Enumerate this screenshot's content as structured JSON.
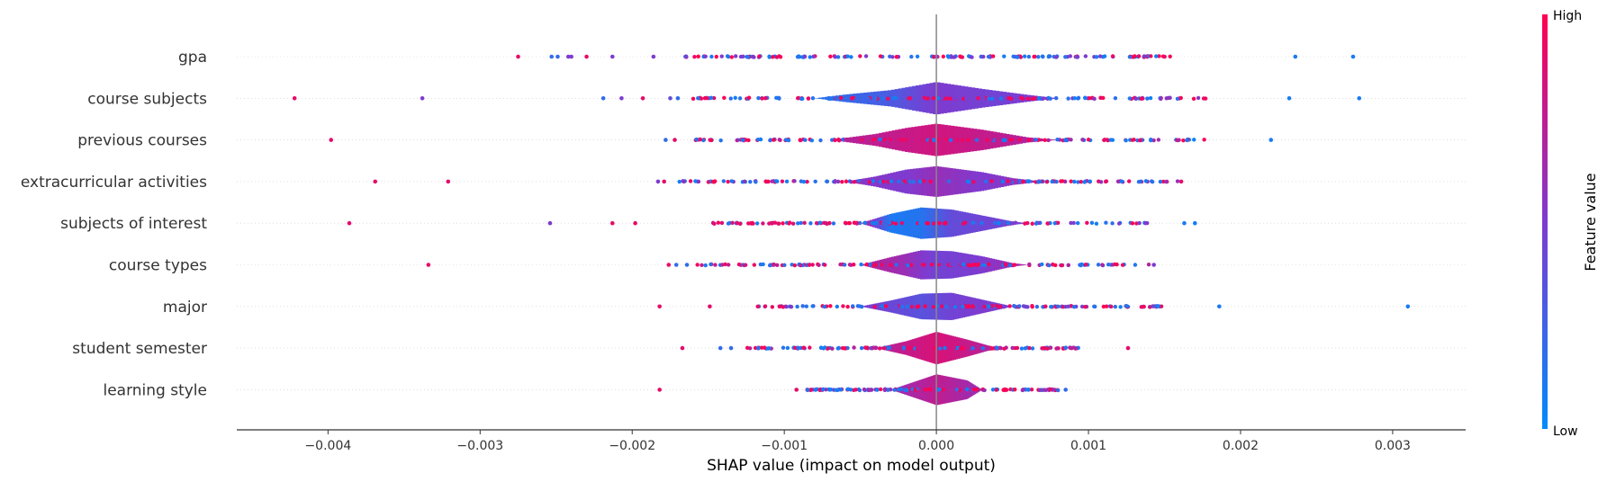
{
  "chart_data": {
    "type": "scatter",
    "subtype": "shap-violin-summary",
    "title": "",
    "xlabel": "SHAP value (impact on model output)",
    "ylabel": "",
    "xlim": [
      -0.0046,
      0.00348
    ],
    "xticks": [
      -0.004,
      -0.003,
      -0.002,
      -0.001,
      0.0,
      0.001,
      0.002,
      0.003
    ],
    "xtick_labels": [
      "−0.004",
      "−0.003",
      "−0.002",
      "−0.001",
      "0.000",
      "0.001",
      "0.002",
      "0.003"
    ],
    "grid": false,
    "zero_line": true,
    "colorbar": {
      "title": "Feature value",
      "high_label": "High",
      "low_label": "Low",
      "low_color": "#008bfb",
      "mid_color": "#7e3bd0",
      "high_color": "#ff0051"
    },
    "features": [
      {
        "name": "gpa",
        "outliers": [
          [
            -0.00275,
            0.9
          ],
          [
            -0.00253,
            0.2
          ],
          [
            -0.00249,
            0.2
          ],
          [
            -0.00242,
            0.5
          ],
          [
            -0.0024,
            0.5
          ],
          [
            -0.0023,
            0.9
          ],
          [
            -0.00213,
            0.5
          ],
          [
            -0.00186,
            0.5
          ],
          [
            -0.00165,
            0.4
          ],
          [
            0.00236,
            0.1
          ],
          [
            0.00274,
            0.1
          ]
        ],
        "band": [
          -0.0017,
          0.0016
        ],
        "violin": [],
        "violin_colors": []
      },
      {
        "name": "course subjects",
        "outliers": [
          [
            -0.00422,
            0.9
          ],
          [
            -0.00338,
            0.5
          ],
          [
            -0.00219,
            0.2
          ],
          [
            -0.00207,
            0.5
          ],
          [
            -0.00193,
            0.9
          ],
          [
            -0.00175,
            0.4
          ],
          [
            -0.0017,
            0.2
          ],
          [
            0.00232,
            0.1
          ],
          [
            0.00278,
            0.1
          ]
        ],
        "band": [
          -0.0016,
          0.0018
        ],
        "violin": [
          [
            -0.0008,
            0.0
          ],
          [
            -0.0006,
            0.22
          ],
          [
            -0.0003,
            0.48
          ],
          [
            0.0,
            0.95
          ],
          [
            0.0003,
            0.55
          ],
          [
            0.0006,
            0.2
          ],
          [
            0.0008,
            0.0
          ]
        ],
        "violin_colors": [
          [
            -0.0008,
            0.15
          ],
          [
            -0.0003,
            0.3
          ],
          [
            0.0,
            0.5
          ],
          [
            0.0004,
            0.45
          ],
          [
            0.0008,
            0.55
          ]
        ]
      },
      {
        "name": "previous courses",
        "outliers": [
          [
            -0.00398,
            0.9
          ],
          [
            -0.00178,
            0.2
          ],
          [
            -0.00172,
            0.9
          ],
          [
            0.0022,
            0.1
          ]
        ],
        "band": [
          -0.0016,
          0.0018
        ],
        "violin": [
          [
            -0.0007,
            0.0
          ],
          [
            -0.0004,
            0.35
          ],
          [
            -0.0002,
            0.7
          ],
          [
            0.0,
            0.95
          ],
          [
            0.0003,
            0.6
          ],
          [
            0.0006,
            0.15
          ],
          [
            0.0008,
            0.0
          ]
        ],
        "violin_colors": [
          [
            -0.0007,
            0.7
          ],
          [
            -0.0002,
            0.78
          ],
          [
            0.0,
            0.82
          ],
          [
            0.0004,
            0.75
          ],
          [
            0.0008,
            0.65
          ]
        ]
      },
      {
        "name": "extracurricular activities",
        "outliers": [
          [
            -0.00369,
            0.9
          ],
          [
            -0.00321,
            0.9
          ],
          [
            -0.00183,
            0.5
          ],
          [
            -0.00179,
            0.9
          ],
          [
            0.00161,
            0.9
          ]
        ],
        "band": [
          -0.0017,
          0.0016
        ],
        "violin": [
          [
            -0.0006,
            0.0
          ],
          [
            -0.0004,
            0.3
          ],
          [
            -0.0002,
            0.7
          ],
          [
            0.0,
            0.9
          ],
          [
            0.0003,
            0.55
          ],
          [
            0.0005,
            0.2
          ],
          [
            0.0007,
            0.0
          ]
        ],
        "violin_colors": [
          [
            -0.0006,
            0.55
          ],
          [
            -0.0002,
            0.5
          ],
          [
            0.0,
            0.6
          ],
          [
            0.0003,
            0.5
          ],
          [
            0.0007,
            0.6
          ]
        ]
      },
      {
        "name": "subjects of interest",
        "outliers": [
          [
            -0.00386,
            0.9
          ],
          [
            -0.00254,
            0.5
          ],
          [
            -0.00213,
            0.9
          ],
          [
            -0.00198,
            0.9
          ],
          [
            0.00163,
            0.1
          ],
          [
            0.0017,
            0.1
          ]
        ],
        "band": [
          -0.0015,
          0.0014
        ],
        "violin": [
          [
            -0.0005,
            0.0
          ],
          [
            -0.0003,
            0.55
          ],
          [
            -0.0001,
            0.92
          ],
          [
            0.0001,
            0.8
          ],
          [
            0.0003,
            0.45
          ],
          [
            0.0005,
            0.1
          ],
          [
            0.0006,
            0.0
          ]
        ],
        "violin_colors": [
          [
            -0.0005,
            0.85
          ],
          [
            -0.0003,
            0.1
          ],
          [
            -0.0001,
            0.15
          ],
          [
            0.0001,
            0.4
          ],
          [
            0.0004,
            0.45
          ],
          [
            0.0006,
            0.5
          ]
        ]
      },
      {
        "name": "course types",
        "outliers": [
          [
            -0.00334,
            0.9
          ],
          [
            -0.00176,
            0.9
          ],
          [
            -0.00171,
            0.2
          ],
          [
            -0.00164,
            0.2
          ],
          [
            0.00143,
            0.5
          ]
        ],
        "band": [
          -0.0016,
          0.0014
        ],
        "violin": [
          [
            -0.0005,
            0.0
          ],
          [
            -0.0003,
            0.45
          ],
          [
            -0.0001,
            0.85
          ],
          [
            0.0001,
            0.8
          ],
          [
            0.0003,
            0.5
          ],
          [
            0.0005,
            0.1
          ],
          [
            0.0006,
            0.0
          ]
        ],
        "violin_colors": [
          [
            -0.0005,
            0.75
          ],
          [
            -0.0002,
            0.6
          ],
          [
            0.0,
            0.45
          ],
          [
            0.0003,
            0.5
          ],
          [
            0.0006,
            0.7
          ]
        ]
      },
      {
        "name": "major",
        "outliers": [
          [
            -0.00182,
            0.9
          ],
          [
            -0.00149,
            0.9
          ],
          [
            0.00186,
            0.1
          ],
          [
            0.0031,
            0.1
          ]
        ],
        "band": [
          -0.0012,
          0.0015
        ],
        "violin": [
          [
            -0.0005,
            0.0
          ],
          [
            -0.0003,
            0.35
          ],
          [
            -0.0001,
            0.75
          ],
          [
            0.0001,
            0.8
          ],
          [
            0.0003,
            0.4
          ],
          [
            0.0005,
            0.0
          ]
        ],
        "violin_colors": [
          [
            -0.0005,
            0.5
          ],
          [
            -0.0001,
            0.35
          ],
          [
            0.0001,
            0.45
          ],
          [
            0.0003,
            0.5
          ],
          [
            0.0005,
            0.45
          ]
        ]
      },
      {
        "name": "student semester",
        "outliers": [
          [
            -0.00167,
            0.9
          ],
          [
            -0.00142,
            0.2
          ],
          [
            -0.00135,
            0.2
          ],
          [
            0.00126,
            0.9
          ]
        ],
        "band": [
          -0.00125,
          0.00095
        ],
        "violin": [
          [
            -0.0004,
            0.0
          ],
          [
            -0.0002,
            0.4
          ],
          [
            0.0,
            0.95
          ],
          [
            0.0002,
            0.5
          ],
          [
            0.0004,
            0.0
          ]
        ],
        "violin_colors": [
          [
            -0.0004,
            0.7
          ],
          [
            0.0,
            0.85
          ],
          [
            0.0004,
            0.7
          ]
        ]
      },
      {
        "name": "learning style",
        "outliers": [
          [
            -0.00182,
            0.9
          ],
          [
            -0.00092,
            0.9
          ],
          [
            0.00085,
            0.2
          ]
        ],
        "band": [
          -0.00085,
          0.0008
        ],
        "violin": [
          [
            -0.0003,
            0.0
          ],
          [
            -0.0001,
            0.6
          ],
          [
            0.0,
            0.9
          ],
          [
            0.0002,
            0.55
          ],
          [
            0.0003,
            0.0
          ]
        ],
        "violin_colors": [
          [
            -0.0003,
            0.6
          ],
          [
            0.0,
            0.75
          ],
          [
            0.0003,
            0.6
          ]
        ]
      }
    ]
  }
}
